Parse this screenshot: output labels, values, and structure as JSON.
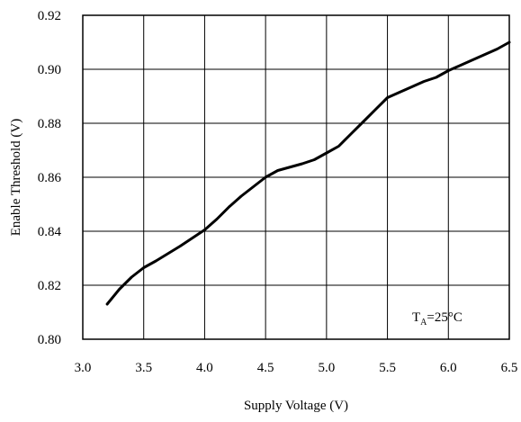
{
  "chart_data": {
    "type": "line",
    "title": "",
    "xlabel": "Supply Voltage (V)",
    "ylabel": "Enable Threshold (V)",
    "xlim": [
      3.0,
      6.5
    ],
    "ylim": [
      0.8,
      0.92
    ],
    "grid": true,
    "x_ticks": [
      3.0,
      3.5,
      4.0,
      4.5,
      5.0,
      5.5,
      6.0,
      6.5
    ],
    "x_tick_labels": [
      "3.0",
      "3.5",
      "4.0",
      "4.5",
      "5.0",
      "5.5",
      "6.0",
      "6.5"
    ],
    "y_ticks": [
      0.8,
      0.82,
      0.84,
      0.86,
      0.88,
      0.9,
      0.92
    ],
    "y_tick_labels": [
      "0.80",
      "0.82",
      "0.84",
      "0.86",
      "0.88",
      "0.90",
      "0.92"
    ],
    "annotation": {
      "main": "T",
      "subscript": "A",
      "rest": "=25°C"
    },
    "series": [
      {
        "color": "#000000",
        "x": [
          3.2,
          3.3,
          3.4,
          3.5,
          3.6,
          3.8,
          4.0,
          4.1,
          4.2,
          4.3,
          4.4,
          4.5,
          4.6,
          4.8,
          4.9,
          5.0,
          5.1,
          5.2,
          5.3,
          5.4,
          5.5,
          5.6,
          5.7,
          5.8,
          5.9,
          6.0,
          6.2,
          6.4,
          6.5
        ],
        "y": [
          0.813,
          0.8185,
          0.823,
          0.8265,
          0.829,
          0.8345,
          0.8405,
          0.8445,
          0.849,
          0.853,
          0.8565,
          0.86,
          0.8625,
          0.865,
          0.8665,
          0.869,
          0.8715,
          0.876,
          0.8805,
          0.885,
          0.8895,
          0.8915,
          0.8935,
          0.8955,
          0.897,
          0.8995,
          0.9035,
          0.9075,
          0.91
        ]
      }
    ]
  }
}
